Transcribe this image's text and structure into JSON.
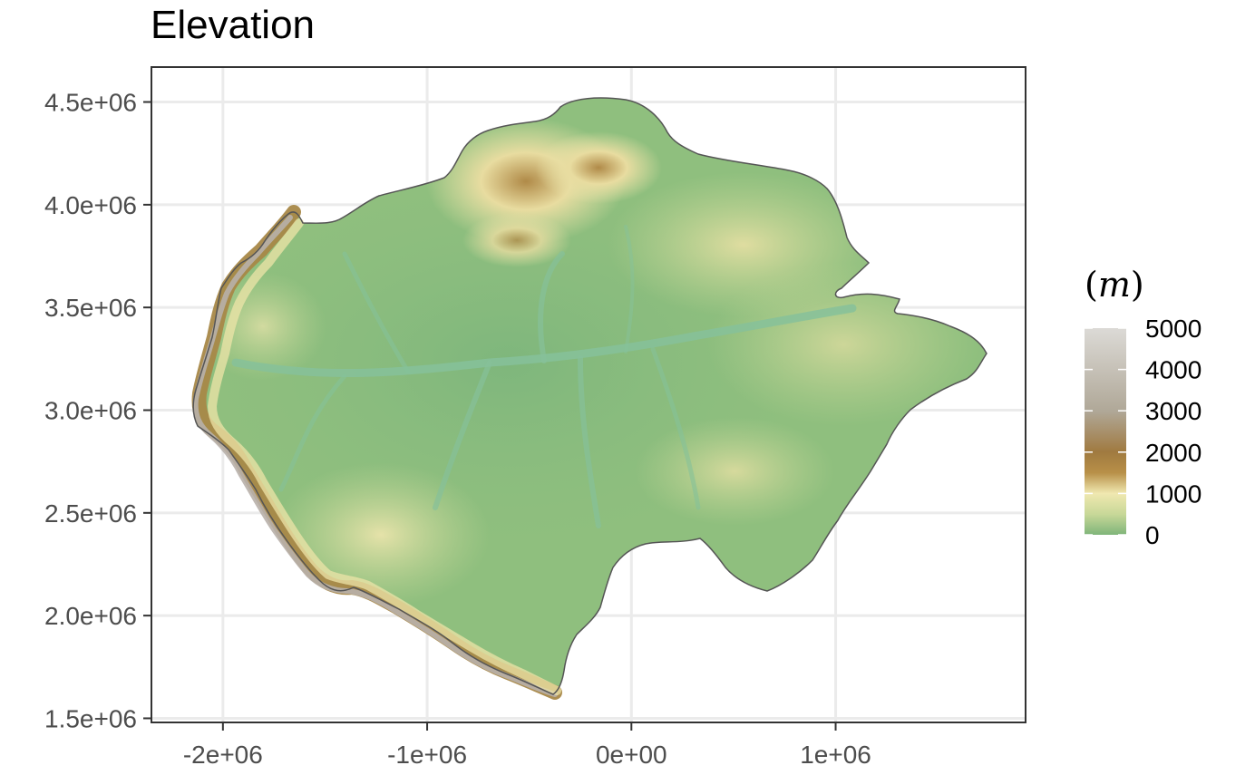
{
  "title": "Elevation",
  "x_axis": {
    "range": [
      -2350000,
      1930000
    ],
    "ticks": [
      {
        "value": -2000000,
        "label": "-2e+06"
      },
      {
        "value": -1000000,
        "label": "-1e+06"
      },
      {
        "value": 0,
        "label": "0e+00"
      },
      {
        "value": 1000000,
        "label": "1e+06"
      }
    ]
  },
  "y_axis": {
    "range": [
      1480000,
      4670000
    ],
    "ticks": [
      {
        "value": 1500000,
        "label": "1.5e+06"
      },
      {
        "value": 2000000,
        "label": "2.0e+06"
      },
      {
        "value": 2500000,
        "label": "2.5e+06"
      },
      {
        "value": 3000000,
        "label": "3.0e+06"
      },
      {
        "value": 3500000,
        "label": "3.5e+06"
      },
      {
        "value": 4000000,
        "label": "4.0e+06"
      },
      {
        "value": 4500000,
        "label": "4.5e+06"
      }
    ]
  },
  "legend": {
    "title_open": "(",
    "title_var": "m",
    "title_close": ")",
    "range": [
      0,
      5000
    ],
    "labels": [
      {
        "value": 5000,
        "label": "5000"
      },
      {
        "value": 4000,
        "label": "4000"
      },
      {
        "value": 3000,
        "label": "3000"
      },
      {
        "value": 2000,
        "label": "2000"
      },
      {
        "value": 1000,
        "label": "1000"
      },
      {
        "value": 0,
        "label": "0"
      }
    ],
    "color_stops": [
      {
        "value": 0,
        "color": "#7fb57a"
      },
      {
        "value": 500,
        "color": "#c8d898"
      },
      {
        "value": 1000,
        "color": "#f0e8b0"
      },
      {
        "value": 1500,
        "color": "#b89048"
      },
      {
        "value": 2000,
        "color": "#a07a40"
      },
      {
        "value": 3000,
        "color": "#b0a898"
      },
      {
        "value": 5000,
        "color": "#dcdad6"
      }
    ]
  },
  "colors": {
    "lowland": "#8fbf7e",
    "lowland_dark": "#7ab07a",
    "river": "#8dc49a",
    "upland": "#c8d898",
    "highland": "#f0e8b0",
    "mountain": "#a88848",
    "peak": "#b4aea8",
    "outline": "#555555",
    "grid": "#ebebeb",
    "panel_border": "#333333"
  }
}
